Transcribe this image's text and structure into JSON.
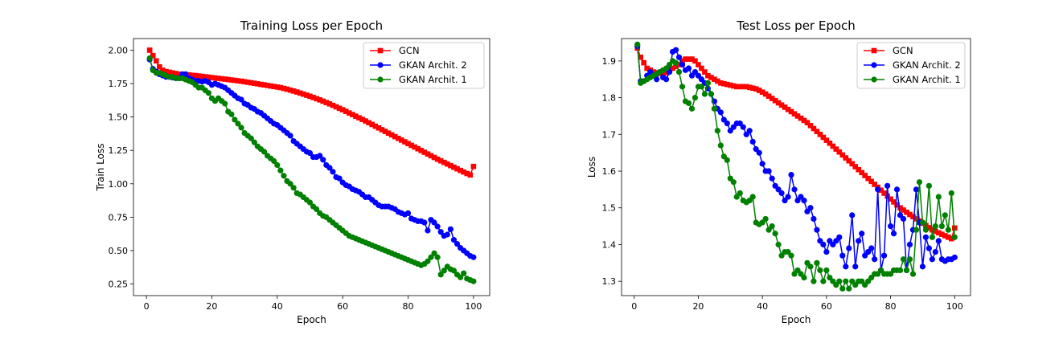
{
  "chart_data": [
    {
      "type": "line",
      "title": "Training Loss per Epoch",
      "xlabel": "Epoch",
      "ylabel": "Train Loss",
      "xlim": [
        -3.95,
        104.95
      ],
      "ylim": [
        0.163,
        2.087
      ],
      "xticks": [
        0,
        20,
        40,
        60,
        80,
        100
      ],
      "yticks": [
        0.25,
        0.5,
        0.75,
        1.0,
        1.25,
        1.5,
        1.75,
        2.0
      ],
      "ytick_labels": [
        "0.25",
        "0.50",
        "0.75",
        "1.00",
        "1.25",
        "1.50",
        "1.75",
        "2.00"
      ],
      "legend_position": "upper right",
      "series": [
        {
          "name": "GCN",
          "color": "#ff0000",
          "marker": "square",
          "values": [
            2.0,
            1.96,
            1.92,
            1.875,
            1.85,
            1.84,
            1.835,
            1.83,
            1.825,
            1.82,
            1.82,
            1.818,
            1.815,
            1.812,
            1.81,
            1.807,
            1.804,
            1.801,
            1.798,
            1.795,
            1.792,
            1.789,
            1.786,
            1.783,
            1.78,
            1.777,
            1.774,
            1.771,
            1.768,
            1.764,
            1.76,
            1.756,
            1.752,
            1.748,
            1.744,
            1.74,
            1.736,
            1.732,
            1.728,
            1.724,
            1.72,
            1.714,
            1.708,
            1.701,
            1.694,
            1.687,
            1.679,
            1.671,
            1.663,
            1.655,
            1.646,
            1.637,
            1.628,
            1.618,
            1.608,
            1.598,
            1.587,
            1.576,
            1.565,
            1.554,
            1.542,
            1.53,
            1.518,
            1.506,
            1.494,
            1.482,
            1.47,
            1.457,
            1.444,
            1.431,
            1.418,
            1.405,
            1.392,
            1.379,
            1.366,
            1.353,
            1.34,
            1.327,
            1.314,
            1.301,
            1.288,
            1.275,
            1.262,
            1.249,
            1.236,
            1.223,
            1.21,
            1.197,
            1.184,
            1.172,
            1.16,
            1.148,
            1.136,
            1.124,
            1.112,
            1.1,
            1.088,
            1.077,
            1.066,
            1.13
          ]
        },
        {
          "name": "GKAN Archit. 2",
          "color": "#0000ff",
          "marker": "circle",
          "values": [
            1.93,
            1.86,
            1.84,
            1.82,
            1.81,
            1.8,
            1.8,
            1.795,
            1.79,
            1.79,
            1.82,
            1.82,
            1.79,
            1.78,
            1.77,
            1.77,
            1.765,
            1.77,
            1.76,
            1.74,
            1.75,
            1.74,
            1.73,
            1.72,
            1.7,
            1.68,
            1.66,
            1.64,
            1.63,
            1.6,
            1.59,
            1.57,
            1.56,
            1.54,
            1.53,
            1.51,
            1.49,
            1.47,
            1.45,
            1.44,
            1.42,
            1.4,
            1.38,
            1.36,
            1.32,
            1.3,
            1.28,
            1.26,
            1.24,
            1.23,
            1.2,
            1.2,
            1.21,
            1.18,
            1.14,
            1.12,
            1.09,
            1.05,
            1.04,
            1.01,
            0.99,
            0.98,
            0.96,
            0.95,
            0.94,
            0.92,
            0.9,
            0.9,
            0.88,
            0.86,
            0.84,
            0.83,
            0.83,
            0.83,
            0.82,
            0.81,
            0.79,
            0.78,
            0.77,
            0.78,
            0.74,
            0.73,
            0.72,
            0.72,
            0.71,
            0.65,
            0.73,
            0.71,
            0.68,
            0.64,
            0.61,
            0.62,
            0.66,
            0.58,
            0.55,
            0.52,
            0.5,
            0.48,
            0.46,
            0.45
          ]
        },
        {
          "name": "GKAN Archit. 1",
          "color": "#008000",
          "marker": "circle",
          "values": [
            1.94,
            1.85,
            1.83,
            1.83,
            1.82,
            1.81,
            1.8,
            1.8,
            1.79,
            1.79,
            1.79,
            1.78,
            1.77,
            1.76,
            1.74,
            1.72,
            1.72,
            1.7,
            1.68,
            1.64,
            1.62,
            1.64,
            1.62,
            1.6,
            1.54,
            1.52,
            1.48,
            1.45,
            1.42,
            1.38,
            1.36,
            1.34,
            1.31,
            1.28,
            1.26,
            1.24,
            1.21,
            1.19,
            1.17,
            1.14,
            1.1,
            1.06,
            1.02,
            1.0,
            0.97,
            0.93,
            0.92,
            0.9,
            0.88,
            0.86,
            0.83,
            0.81,
            0.78,
            0.76,
            0.75,
            0.73,
            0.71,
            0.69,
            0.67,
            0.65,
            0.63,
            0.61,
            0.6,
            0.59,
            0.58,
            0.57,
            0.56,
            0.55,
            0.54,
            0.53,
            0.52,
            0.51,
            0.5,
            0.49,
            0.48,
            0.47,
            0.46,
            0.45,
            0.44,
            0.43,
            0.42,
            0.41,
            0.4,
            0.39,
            0.4,
            0.42,
            0.45,
            0.48,
            0.45,
            0.32,
            0.35,
            0.38,
            0.36,
            0.35,
            0.32,
            0.3,
            0.33,
            0.29,
            0.28,
            0.27
          ]
        }
      ]
    },
    {
      "type": "line",
      "title": "Test Loss per Epoch",
      "xlabel": "Epoch",
      "ylabel": "Loss",
      "xlim": [
        -3.95,
        104.95
      ],
      "ylim": [
        1.261,
        1.961
      ],
      "xticks": [
        0,
        20,
        40,
        60,
        80,
        100
      ],
      "yticks": [
        1.3,
        1.4,
        1.5,
        1.6,
        1.7,
        1.8,
        1.9
      ],
      "ytick_labels": [
        "1.3",
        "1.4",
        "1.5",
        "1.6",
        "1.7",
        "1.8",
        "1.9"
      ],
      "legend_position": "upper right",
      "series": [
        {
          "name": "GCN",
          "color": "#ff0000",
          "marker": "square",
          "values": [
            1.935,
            1.91,
            1.895,
            1.88,
            1.875,
            1.87,
            1.868,
            1.866,
            1.865,
            1.868,
            1.875,
            1.88,
            1.885,
            1.89,
            1.9,
            1.905,
            1.905,
            1.905,
            1.9,
            1.89,
            1.88,
            1.87,
            1.86,
            1.855,
            1.85,
            1.845,
            1.84,
            1.838,
            1.836,
            1.834,
            1.832,
            1.83,
            1.83,
            1.83,
            1.83,
            1.828,
            1.826,
            1.824,
            1.82,
            1.815,
            1.81,
            1.804,
            1.798,
            1.792,
            1.786,
            1.78,
            1.774,
            1.768,
            1.762,
            1.756,
            1.75,
            1.744,
            1.738,
            1.732,
            1.724,
            1.716,
            1.708,
            1.7,
            1.692,
            1.684,
            1.676,
            1.668,
            1.66,
            1.652,
            1.644,
            1.636,
            1.628,
            1.62,
            1.612,
            1.604,
            1.596,
            1.588,
            1.58,
            1.572,
            1.564,
            1.556,
            1.548,
            1.54,
            1.532,
            1.524,
            1.516,
            1.508,
            1.5,
            1.494,
            1.488,
            1.482,
            1.476,
            1.47,
            1.464,
            1.458,
            1.452,
            1.446,
            1.44,
            1.436,
            1.432,
            1.428,
            1.424,
            1.42,
            1.416,
            1.445
          ]
        },
        {
          "name": "GKAN Archit. 2",
          "color": "#0000ff",
          "marker": "circle",
          "values": [
            1.94,
            1.845,
            1.845,
            1.86,
            1.87,
            1.86,
            1.85,
            1.87,
            1.855,
            1.85,
            1.87,
            1.925,
            1.93,
            1.91,
            1.89,
            1.875,
            1.88,
            1.86,
            1.87,
            1.86,
            1.85,
            1.84,
            1.825,
            1.81,
            1.79,
            1.77,
            1.76,
            1.74,
            1.73,
            1.71,
            1.72,
            1.73,
            1.73,
            1.72,
            1.7,
            1.71,
            1.68,
            1.66,
            1.65,
            1.62,
            1.6,
            1.6,
            1.58,
            1.56,
            1.55,
            1.54,
            1.52,
            1.53,
            1.59,
            1.55,
            1.52,
            1.53,
            1.52,
            1.49,
            1.5,
            1.47,
            1.44,
            1.41,
            1.4,
            1.38,
            1.41,
            1.4,
            1.41,
            1.42,
            1.37,
            1.34,
            1.39,
            1.48,
            1.34,
            1.41,
            1.43,
            1.37,
            1.38,
            1.39,
            1.36,
            1.55,
            1.33,
            1.37,
            1.56,
            1.45,
            1.43,
            1.55,
            1.48,
            1.47,
            1.33,
            1.4,
            1.44,
            1.55,
            1.46,
            1.34,
            1.42,
            1.39,
            1.36,
            1.38,
            1.41,
            1.36,
            1.355,
            1.36,
            1.36,
            1.365
          ]
        },
        {
          "name": "GKAN Archit. 1",
          "color": "#008000",
          "marker": "circle",
          "values": [
            1.945,
            1.84,
            1.845,
            1.85,
            1.855,
            1.86,
            1.865,
            1.87,
            1.875,
            1.88,
            1.89,
            1.9,
            1.895,
            1.87,
            1.83,
            1.79,
            1.785,
            1.77,
            1.8,
            1.83,
            1.83,
            1.81,
            1.84,
            1.81,
            1.77,
            1.71,
            1.67,
            1.64,
            1.63,
            1.58,
            1.57,
            1.53,
            1.54,
            1.52,
            1.515,
            1.52,
            1.53,
            1.46,
            1.455,
            1.46,
            1.47,
            1.44,
            1.45,
            1.43,
            1.4,
            1.37,
            1.38,
            1.38,
            1.37,
            1.32,
            1.33,
            1.32,
            1.31,
            1.35,
            1.34,
            1.3,
            1.35,
            1.33,
            1.3,
            1.33,
            1.31,
            1.3,
            1.29,
            1.3,
            1.28,
            1.3,
            1.28,
            1.3,
            1.29,
            1.3,
            1.3,
            1.29,
            1.3,
            1.31,
            1.32,
            1.32,
            1.33,
            1.32,
            1.32,
            1.32,
            1.33,
            1.33,
            1.33,
            1.36,
            1.33,
            1.36,
            1.32,
            1.44,
            1.57,
            1.46,
            1.44,
            1.56,
            1.42,
            1.45,
            1.53,
            1.45,
            1.48,
            1.44,
            1.54,
            1.42
          ]
        }
      ]
    }
  ]
}
